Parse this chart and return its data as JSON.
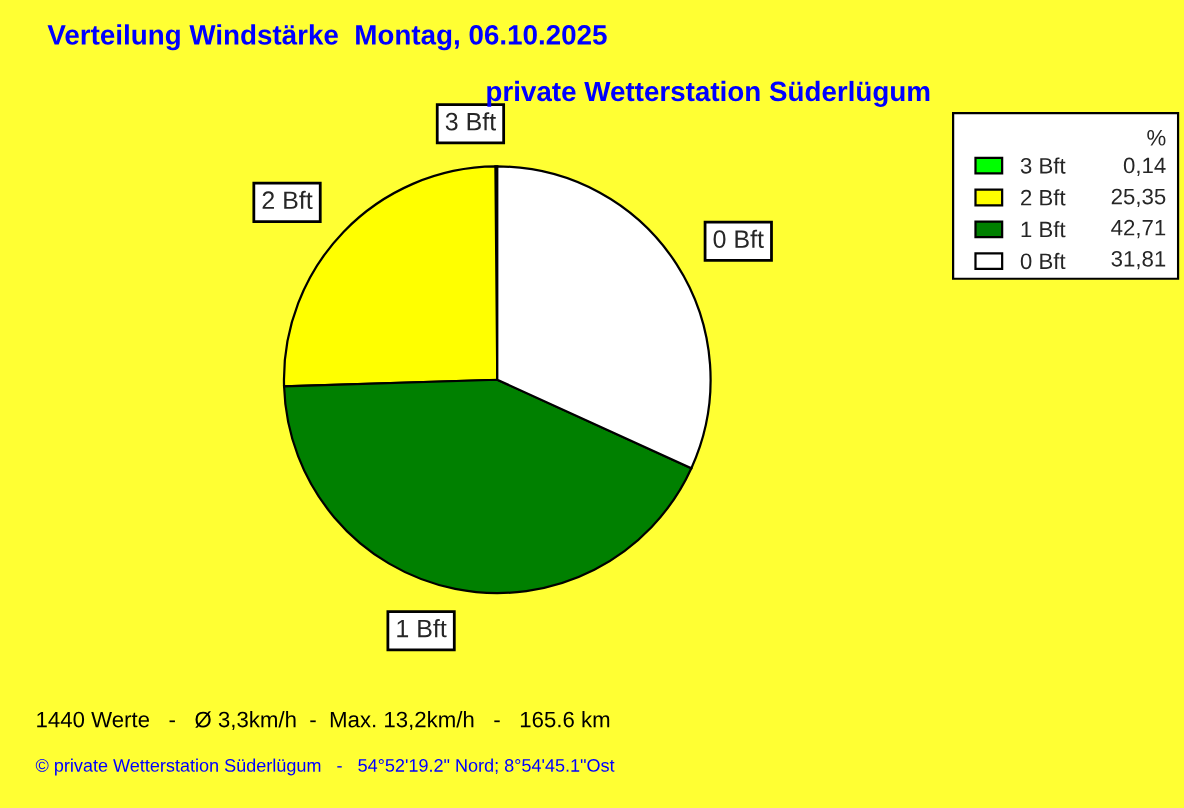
{
  "chart_data": {
    "type": "pie",
    "title": "Verteilung Windstärke  Montag, 06.10.2025",
    "subtitle": "private Wetterstation Süderlügum",
    "categories": [
      "3 Bft",
      "2 Bft",
      "1 Bft",
      "0 Bft"
    ],
    "values": [
      0.14,
      25.35,
      42.71,
      31.81
    ],
    "value_labels": [
      "0,14",
      "25,35",
      "42,71",
      "31,81"
    ],
    "colors": [
      "#00ff00",
      "#ffff00",
      "#008000",
      "#ffffff"
    ],
    "legend_title": "%",
    "legend": "top right",
    "annotations": [
      "1440 Werte   -   Ø 3,3km/h  -  Max. 13,2km/h   -   165.6 km",
      "© private Wetterstation Süderlügum   -   54°52'19.2\" Nord; 8°54'45.1\"Ost"
    ]
  }
}
